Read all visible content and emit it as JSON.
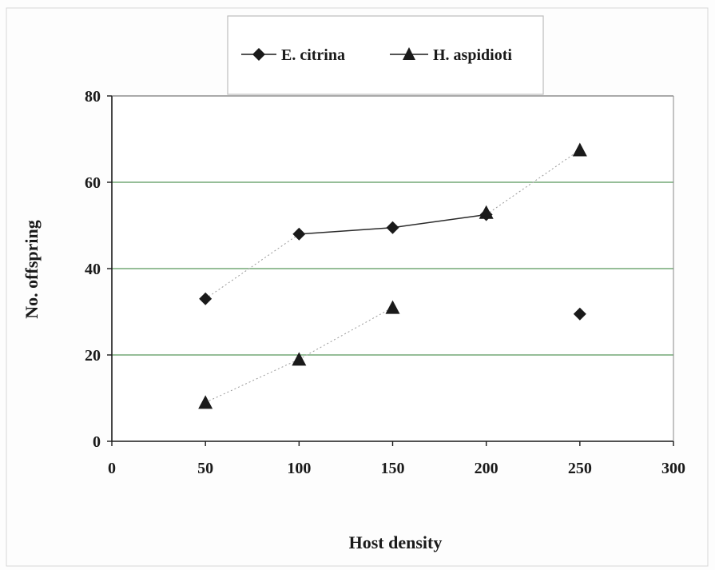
{
  "chart_data": {
    "type": "scatter",
    "title": "",
    "xlabel": "Host density",
    "ylabel": "No. offspring",
    "xlim": [
      0,
      300
    ],
    "ylim": [
      0,
      80
    ],
    "xticks": [
      0,
      50,
      100,
      150,
      200,
      250,
      300
    ],
    "yticks": [
      0,
      20,
      40,
      60,
      80
    ],
    "grid": "horizontal",
    "legend_position": "top",
    "series": [
      {
        "name": "E. citrina",
        "marker": "diamond",
        "color": "#1a1a1a",
        "x": [
          50,
          100,
          150,
          200,
          250
        ],
        "y": [
          33,
          48,
          49.5,
          52.5,
          29.5
        ]
      },
      {
        "name": "H. aspidioti",
        "marker": "triangle",
        "color": "#1a1a1a",
        "x": [
          50,
          100,
          150,
          200,
          250
        ],
        "y": [
          9,
          19,
          31,
          53,
          67.5
        ]
      }
    ],
    "connectors": [
      {
        "from": [
          50,
          33
        ],
        "to": [
          100,
          48
        ],
        "style": "dotted"
      },
      {
        "from": [
          100,
          48
        ],
        "to": [
          150,
          49.5
        ],
        "style": "solid"
      },
      {
        "from": [
          150,
          49.5
        ],
        "to": [
          200,
          52.5
        ],
        "style": "solid"
      },
      {
        "from": [
          200,
          52.5
        ],
        "to": [
          250,
          67.5
        ],
        "style": "dotted"
      },
      {
        "from": [
          50,
          9
        ],
        "to": [
          100,
          19
        ],
        "style": "dotted"
      },
      {
        "from": [
          100,
          19
        ],
        "to": [
          150,
          31
        ],
        "style": "dotted"
      }
    ],
    "colors": {
      "gridline": "#2e7d32",
      "axis": "#1a1a1a",
      "plot_background": "#ffffff"
    }
  }
}
